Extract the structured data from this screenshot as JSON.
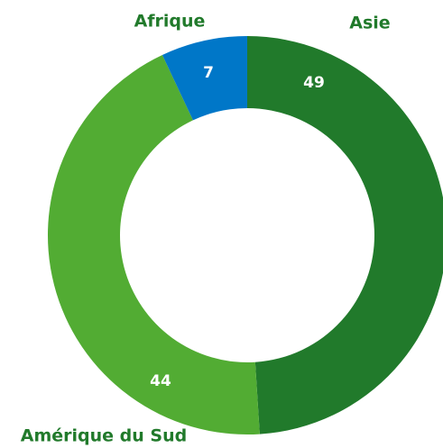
{
  "chart_data": {
    "type": "donut",
    "categories": [
      "Asie",
      "Amérique du Sud",
      "Afrique"
    ],
    "values": [
      49,
      44,
      7
    ],
    "colors": [
      "#217a2b",
      "#52ac33",
      "#0077c8"
    ]
  }
}
